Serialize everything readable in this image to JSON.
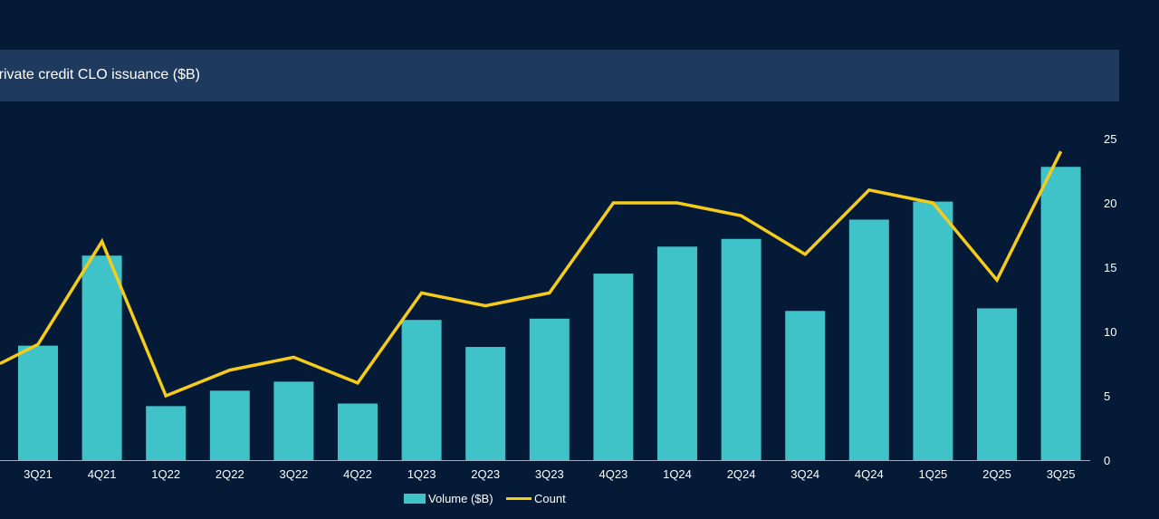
{
  "chart_data": {
    "type": "bar",
    "title": "Private credit CLO issuance ($B)",
    "categories": [
      "3Q21",
      "4Q21",
      "1Q22",
      "2Q22",
      "3Q22",
      "4Q22",
      "1Q23",
      "2Q23",
      "3Q23",
      "4Q23",
      "1Q24",
      "2Q24",
      "3Q24",
      "4Q24",
      "1Q25",
      "2Q25",
      "3Q25"
    ],
    "series": [
      {
        "name": "Volume ($B)",
        "type": "bar",
        "color": "#40c2c9",
        "values": [
          8.9,
          15.9,
          4.2,
          5.4,
          6.1,
          4.4,
          10.9,
          8.8,
          11.0,
          14.5,
          16.6,
          17.2,
          11.6,
          18.7,
          20.1,
          11.8,
          22.8
        ]
      },
      {
        "name": "Count",
        "type": "line",
        "color": "#f5cc1a",
        "values": [
          9,
          17,
          5,
          7,
          8,
          6,
          13,
          12,
          13,
          20,
          20,
          19,
          16,
          21,
          20,
          14,
          24
        ]
      }
    ],
    "count_prior_value": 7.5,
    "yticks": [
      "0",
      "5",
      "10",
      "15",
      "20",
      "25"
    ],
    "ylim": [
      0,
      25
    ],
    "legend_position": "bottom-center",
    "grid": false
  }
}
